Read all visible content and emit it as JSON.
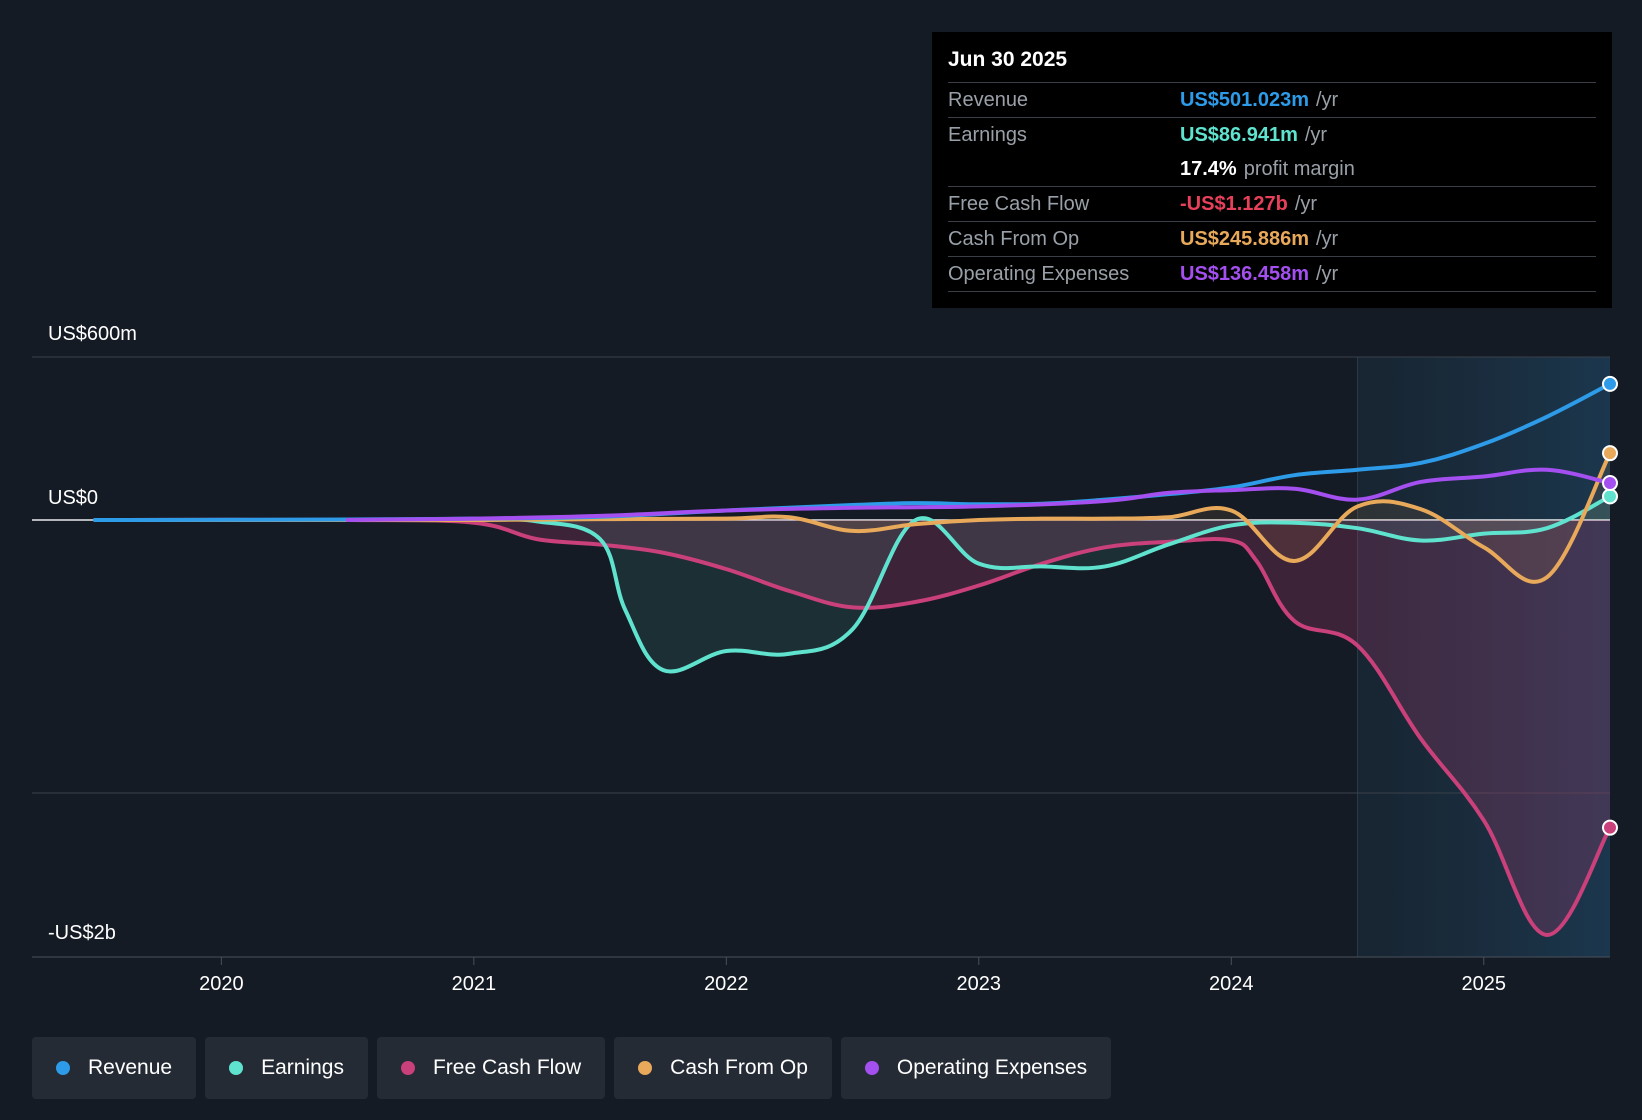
{
  "tooltip": {
    "date": "Jun 30 2025",
    "rows": [
      {
        "label": "Revenue",
        "value": "US$501.023m",
        "unit": "/yr",
        "color": "#2d9be8"
      },
      {
        "label": "Earnings",
        "value": "US$86.941m",
        "unit": "/yr",
        "color": "#5fe3cf"
      },
      {
        "label": "",
        "value": "17.4%",
        "unit": "profit margin",
        "color": "#ffffff"
      },
      {
        "label": "Free Cash Flow",
        "value": "-US$1.127b",
        "unit": "/yr",
        "color": "#e8405a"
      },
      {
        "label": "Cash From Op",
        "value": "US$245.886m",
        "unit": "/yr",
        "color": "#e9a95a"
      },
      {
        "label": "Operating Expenses",
        "value": "US$136.458m",
        "unit": "/yr",
        "color": "#a44ff0"
      }
    ]
  },
  "legend": [
    {
      "label": "Revenue",
      "color": "#2d9be8"
    },
    {
      "label": "Earnings",
      "color": "#5fe3cf"
    },
    {
      "label": "Free Cash Flow",
      "color": "#c9407a"
    },
    {
      "label": "Cash From Op",
      "color": "#e9a95a"
    },
    {
      "label": "Operating Expenses",
      "color": "#a44ff0"
    }
  ],
  "chart_data": {
    "type": "line",
    "y_labels": {
      "top": "US$600m",
      "zero": "US$0",
      "bottom": "-US$2b"
    },
    "x_tick_labels": [
      "2020",
      "2021",
      "2022",
      "2023",
      "2024",
      "2025"
    ],
    "x_ticks": [
      2020,
      2021,
      2022,
      2023,
      2024,
      2025
    ],
    "xlim": [
      2019.25,
      2025.5
    ],
    "ylim": [
      -1600,
      600
    ],
    "grid_values": [
      600,
      0,
      -1000
    ],
    "highlight_from": 2024.5,
    "series": [
      {
        "name": "Revenue",
        "color": "#2d9be8",
        "fill": false,
        "x": [
          2019.5,
          2020.5,
          2021.0,
          2021.5,
          2022.0,
          2022.5,
          2022.75,
          2023.0,
          2023.25,
          2023.5,
          2023.75,
          2024.0,
          2024.25,
          2024.5,
          2024.75,
          2025.0,
          2025.25,
          2025.5
        ],
        "y": [
          0,
          2,
          5,
          12,
          35,
          55,
          62,
          58,
          60,
          75,
          95,
          120,
          165,
          185,
          210,
          280,
          380,
          501
        ]
      },
      {
        "name": "Earnings",
        "color": "#5fe3cf",
        "fill": true,
        "x": [
          2019.5,
          2020.5,
          2021.0,
          2021.25,
          2021.5,
          2021.6,
          2021.75,
          2022.0,
          2022.25,
          2022.5,
          2022.75,
          2023.0,
          2023.25,
          2023.5,
          2023.75,
          2024.0,
          2024.25,
          2024.5,
          2024.75,
          2025.0,
          2025.25,
          2025.5
        ],
        "y": [
          0,
          0,
          0,
          -5,
          -70,
          -330,
          -550,
          -480,
          -490,
          -400,
          0,
          -160,
          -170,
          -170,
          -90,
          -20,
          -10,
          -30,
          -75,
          -50,
          -30,
          87
        ]
      },
      {
        "name": "Free Cash Flow",
        "color": "#c9407a",
        "fill": true,
        "x": [
          2019.5,
          2020.5,
          2021.0,
          2021.25,
          2021.5,
          2021.75,
          2022.0,
          2022.25,
          2022.5,
          2022.75,
          2023.0,
          2023.25,
          2023.5,
          2023.75,
          2024.0,
          2024.1,
          2024.25,
          2024.5,
          2024.75,
          2025.0,
          2025.25,
          2025.5
        ],
        "y": [
          0,
          0,
          -10,
          -70,
          -90,
          -120,
          -180,
          -260,
          -320,
          -300,
          -240,
          -160,
          -100,
          -80,
          -75,
          -150,
          -370,
          -460,
          -800,
          -1100,
          -1520,
          -1127
        ]
      },
      {
        "name": "Cash From Op",
        "color": "#e9a95a",
        "fill": true,
        "x": [
          2019.5,
          2020.5,
          2021.0,
          2021.5,
          2022.0,
          2022.25,
          2022.5,
          2022.75,
          2023.0,
          2023.25,
          2023.5,
          2023.75,
          2024.0,
          2024.25,
          2024.5,
          2024.75,
          2025.0,
          2025.25,
          2025.5
        ],
        "y": [
          0,
          0,
          0,
          3,
          5,
          10,
          -40,
          -15,
          0,
          5,
          5,
          10,
          35,
          -150,
          50,
          40,
          -100,
          -210,
          246
        ]
      },
      {
        "name": "Operating Expenses",
        "color": "#a44ff0",
        "fill": false,
        "x": [
          2020.5,
          2021.0,
          2021.5,
          2022.0,
          2022.5,
          2023.0,
          2023.5,
          2023.75,
          2024.0,
          2024.25,
          2024.5,
          2024.75,
          2025.0,
          2025.25,
          2025.5
        ],
        "y": [
          0,
          5,
          15,
          35,
          45,
          50,
          70,
          100,
          110,
          115,
          75,
          140,
          160,
          185,
          136
        ]
      }
    ]
  }
}
